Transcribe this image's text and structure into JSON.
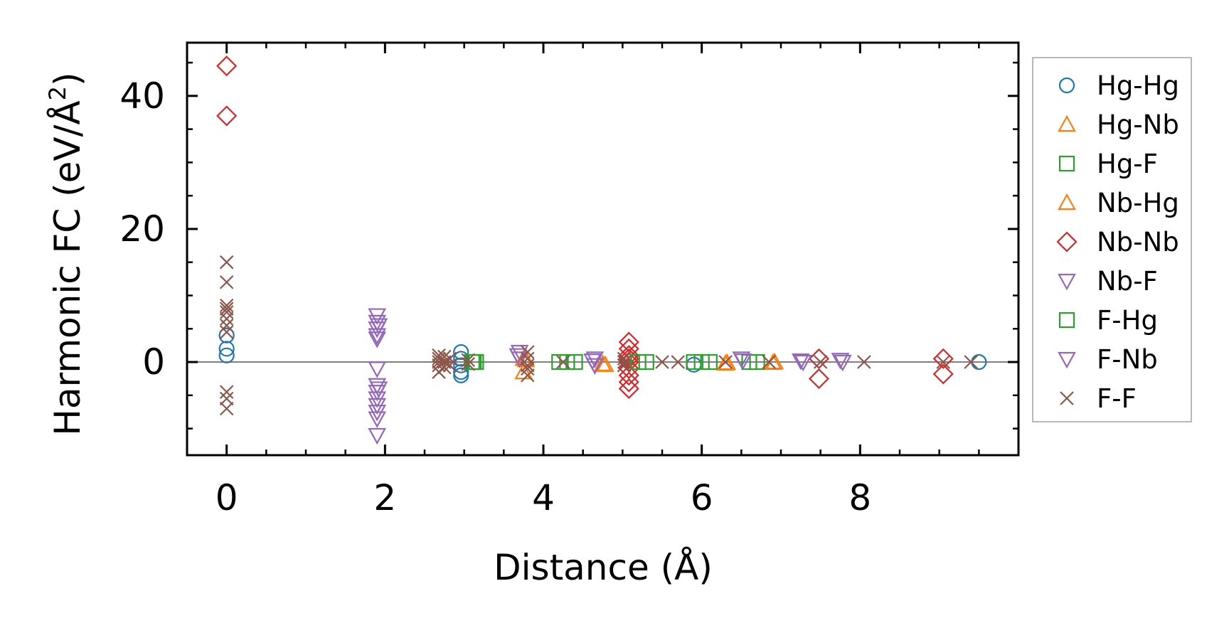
{
  "chart_data": {
    "type": "scatter",
    "xlabel": "Distance (Å)",
    "ylabel": "Harmonic FC (eV/Å²)",
    "ylabel_main": "Harmonic FC (eV/Å",
    "ylabel_sup": "2",
    "ylabel_close": ")",
    "xlim": [
      -0.5,
      10.0
    ],
    "ylim": [
      -14,
      48
    ],
    "xticks": [
      0,
      2,
      4,
      6,
      8
    ],
    "xtick_labels": [
      "0",
      "2",
      "4",
      "6",
      "8"
    ],
    "yticks": [
      0,
      20,
      40
    ],
    "ytick_labels": [
      "0",
      "20",
      "40"
    ],
    "x_minor_step": 0.5,
    "y_minor_step": 5,
    "zero_line": true,
    "grid": false,
    "legend_position": "outside-right",
    "series": [
      {
        "name": "Hg-Hg",
        "marker": "circle",
        "color": "#1f77b4",
        "x": [
          0,
          0,
          0,
          2.96,
          2.96,
          2.96,
          2.96,
          2.96,
          5.9,
          9.5
        ],
        "y": [
          4,
          2,
          1,
          1.5,
          0.5,
          -0.5,
          -1.5,
          -2,
          -0.4,
          0
        ]
      },
      {
        "name": "Hg-Nb",
        "marker": "triangle-up",
        "color": "#ff7f0e",
        "x": [
          3.75,
          3.75,
          4.75,
          6.3,
          6.9
        ],
        "y": [
          0.5,
          -1.5,
          -0.3,
          -0.2,
          -0.1
        ]
      },
      {
        "name": "Hg-F",
        "marker": "square",
        "color": "#2ca02c",
        "x": [
          3.1,
          3.15,
          4.2,
          4.4,
          5.3,
          5.9,
          6.1,
          6.7
        ],
        "y": [
          0,
          0,
          0,
          0,
          0,
          0,
          0,
          0
        ]
      },
      {
        "name": "Nb-Hg",
        "marker": "triangle-up",
        "color": "#ff7f0e",
        "x": [
          3.78,
          4.78,
          6.32,
          6.92
        ],
        "y": [
          0.3,
          -0.4,
          -0.1,
          0
        ]
      },
      {
        "name": "Nb-Nb",
        "marker": "diamond",
        "color": "#d62728",
        "x": [
          0,
          0,
          5.08,
          5.08,
          5.08,
          5.08,
          5.08,
          5.08,
          5.08,
          5.08,
          5.08,
          7.48,
          7.48,
          9.05,
          9.05
        ],
        "y": [
          44.5,
          37,
          3,
          2,
          1,
          0,
          -1,
          -2,
          -3,
          -4,
          0.5,
          0.5,
          -2.5,
          0.5,
          -1.8
        ]
      },
      {
        "name": "Nb-F",
        "marker": "triangle-down",
        "color": "#9467bd",
        "x": [
          1.9,
          1.9,
          1.9,
          1.9,
          1.9,
          1.9,
          1.9,
          1.9,
          1.9,
          1.9,
          1.9,
          1.9,
          1.9,
          3.7,
          3.7,
          4.65,
          4.65,
          6.5,
          7.25,
          7.75
        ],
        "y": [
          7,
          6,
          5,
          4,
          3.5,
          -1,
          -3.5,
          -4.5,
          -5.5,
          -6.5,
          -7.5,
          -8.5,
          -11,
          1.5,
          0.5,
          0.5,
          -0.5,
          0.5,
          0.2,
          0.3
        ]
      },
      {
        "name": "F-Hg",
        "marker": "square",
        "color": "#2ca02c",
        "x": [
          3.12,
          4.3,
          5.2,
          6.0,
          6.6
        ],
        "y": [
          0,
          0,
          0,
          0,
          0
        ]
      },
      {
        "name": "F-Nb",
        "marker": "triangle-down",
        "color": "#9467bd",
        "x": [
          1.92,
          1.92,
          3.68,
          4.62,
          6.52,
          7.28,
          7.78
        ],
        "y": [
          5.5,
          -4,
          1,
          0.2,
          0.2,
          0,
          0
        ]
      },
      {
        "name": "F-F",
        "marker": "x",
        "color": "#8c564b",
        "x": [
          0,
          0,
          0,
          0,
          0,
          0,
          0,
          0,
          0,
          0,
          0,
          2.68,
          2.68,
          2.68,
          2.68,
          2.68,
          2.75,
          2.75,
          2.75,
          2.82,
          2.82,
          3.05,
          3.05,
          3.8,
          3.8,
          3.8,
          3.8,
          3.8,
          4.25,
          5.02,
          5.02,
          5.02,
          5.5,
          5.7,
          6.3,
          6.85,
          7.5,
          8.05,
          9.05,
          9.4
        ],
        "y": [
          15,
          12,
          8.5,
          8,
          7.5,
          6.5,
          5.5,
          4.5,
          -4.5,
          -5.5,
          -7,
          1,
          0.5,
          0,
          -0.5,
          -1.5,
          0.8,
          0,
          -0.8,
          0.5,
          -0.5,
          0.3,
          -0.3,
          1.5,
          0.5,
          -0.5,
          -1,
          -2,
          0,
          0.5,
          0,
          -0.5,
          0,
          0,
          0,
          0,
          0,
          0,
          0,
          0
        ]
      }
    ]
  }
}
